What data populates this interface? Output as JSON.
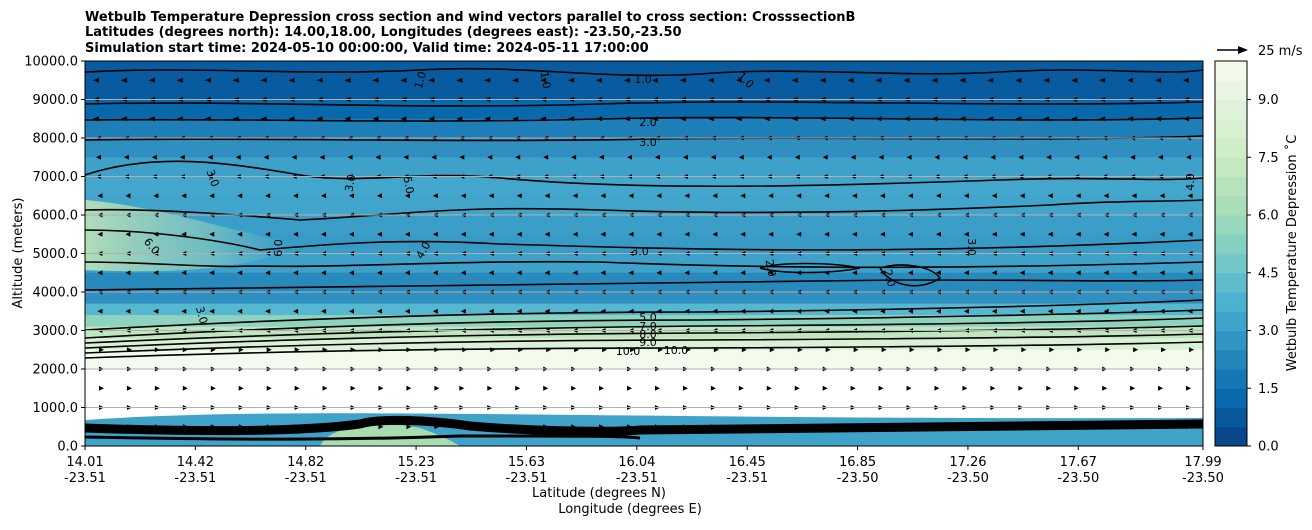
{
  "chart_data": {
    "type": "heatmap",
    "title_lines": [
      "Wetbulb Temperature Depression cross section and wind vectors parallel to cross section: CrosssectionB",
      "Latitudes (degrees north): 14.00,18.00, Longitudes (degrees east): -23.50,-23.50",
      "Simulation start time: 2024-05-10 00:00:00, Valid time: 2024-05-11 17:00:00"
    ],
    "ylabel": "Altitude (meters)",
    "xlabel_lines": [
      "Latitude (degrees N)",
      "Longitude (degrees E)"
    ],
    "ylim": [
      0,
      10000
    ],
    "y_ticks": [
      "0.0",
      "1000.0",
      "2000.0",
      "3000.0",
      "4000.0",
      "5000.0",
      "6000.0",
      "7000.0",
      "8000.0",
      "9000.0",
      "10000.0"
    ],
    "y_tick_values": [
      0,
      1000,
      2000,
      3000,
      4000,
      5000,
      6000,
      7000,
      8000,
      9000,
      10000
    ],
    "grid": "horizontal",
    "x_ticks": [
      {
        "lat": "14.01",
        "lon": "-23.51"
      },
      {
        "lat": "14.42",
        "lon": "-23.51"
      },
      {
        "lat": "14.82",
        "lon": "-23.51"
      },
      {
        "lat": "15.23",
        "lon": "-23.51"
      },
      {
        "lat": "15.63",
        "lon": "-23.51"
      },
      {
        "lat": "16.04",
        "lon": "-23.51"
      },
      {
        "lat": "16.45",
        "lon": "-23.51"
      },
      {
        "lat": "16.85",
        "lon": "-23.50"
      },
      {
        "lat": "17.26",
        "lon": "-23.50"
      },
      {
        "lat": "17.67",
        "lon": "-23.50"
      },
      {
        "lat": "17.99",
        "lon": "-23.50"
      }
    ],
    "colorbar": {
      "label": "Wetbulb Temperature Depression $^\\circ$C",
      "label_display": "Wetbulb Temperature Depression ˚C",
      "range": [
        0,
        10
      ],
      "tick_labels": [
        "0.0",
        "1.5",
        "3.0",
        "4.5",
        "6.0",
        "7.5",
        "9.0"
      ],
      "tick_values": [
        0,
        1.5,
        3.0,
        4.5,
        6.0,
        7.5,
        9.0
      ],
      "colormap": "GnBu_r"
    },
    "wind_key": {
      "label": "25 m/s"
    },
    "contour_labels": [
      "1.0",
      "2.0",
      "3.0",
      "4.0",
      "5.0",
      "6.0",
      "7.0",
      "8.0",
      "9.0",
      "10.0"
    ],
    "bands": [
      {
        "alt": 10000,
        "value": 0.8
      },
      {
        "alt": 9500,
        "value": 0.8
      },
      {
        "alt": 9000,
        "value": 1.2
      },
      {
        "alt": 8500,
        "value": 2.0
      },
      {
        "alt": 8000,
        "value": 2.6
      },
      {
        "alt": 7500,
        "value": 3.2
      },
      {
        "alt": 7000,
        "value": 3.4
      },
      {
        "alt": 6500,
        "value": 3.3
      },
      {
        "alt": 6000,
        "value": 3.1
      },
      {
        "alt": 5500,
        "value": 3.0
      },
      {
        "alt": 5000,
        "value": 3.2
      },
      {
        "alt": 4500,
        "value": 2.4
      },
      {
        "alt": 4000,
        "value": 2.6
      },
      {
        "alt": 3700,
        "value": 4.0
      },
      {
        "alt": 3400,
        "value": 5.5
      },
      {
        "alt": 3100,
        "value": 7.0
      },
      {
        "alt": 2800,
        "value": 8.5
      },
      {
        "alt": 2500,
        "value": 9.8
      },
      {
        "alt": 2200,
        "value": 10.5
      }
    ]
  }
}
